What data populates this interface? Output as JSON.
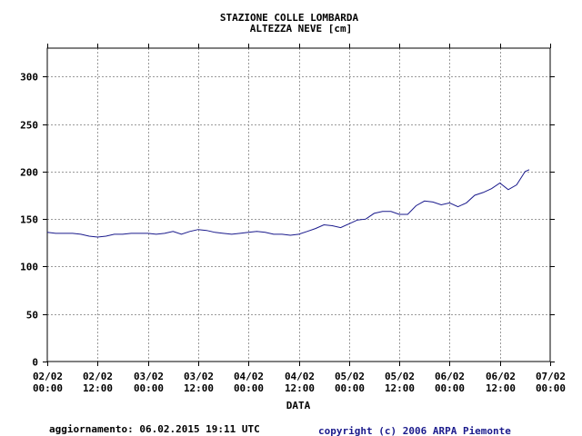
{
  "chart_data": {
    "type": "line",
    "title": "STAZIONE COLLE LOMBARDA",
    "subtitle": "ALTEZZA NEVE [cm]",
    "xlabel": "DATA",
    "ylabel": "",
    "ylim": [
      0,
      330
    ],
    "yticks": [
      0,
      50,
      100,
      150,
      200,
      250,
      300
    ],
    "xlim": [
      "02/02 00:00",
      "07/02 00:00"
    ],
    "xtick_dates": [
      "02/02",
      "02/02",
      "03/02",
      "03/02",
      "04/02",
      "04/02",
      "05/02",
      "05/02",
      "06/02",
      "06/02",
      "07/02"
    ],
    "xtick_times": [
      "00:00",
      "12:00",
      "00:00",
      "12:00",
      "00:00",
      "12:00",
      "00:00",
      "12:00",
      "00:00",
      "12:00",
      "00:00"
    ],
    "grid": true,
    "line_color": "#1a1a8c",
    "series": [
      {
        "name": "",
        "x": [
          "02/02 00:00",
          "02/02 02:00",
          "02/02 04:00",
          "02/02 06:00",
          "02/02 08:00",
          "02/02 10:00",
          "02/02 12:00",
          "02/02 14:00",
          "02/02 16:00",
          "02/02 18:00",
          "02/02 20:00",
          "02/02 22:00",
          "03/02 00:00",
          "03/02 02:00",
          "03/02 04:00",
          "03/02 06:00",
          "03/02 08:00",
          "03/02 10:00",
          "03/02 12:00",
          "03/02 14:00",
          "03/02 16:00",
          "03/02 18:00",
          "03/02 20:00",
          "03/02 22:00",
          "04/02 00:00",
          "04/02 02:00",
          "04/02 04:00",
          "04/02 06:00",
          "04/02 08:00",
          "04/02 10:00",
          "04/02 12:00",
          "04/02 14:00",
          "04/02 16:00",
          "04/02 18:00",
          "04/02 20:00",
          "04/02 22:00",
          "05/02 00:00",
          "05/02 02:00",
          "05/02 04:00",
          "05/02 06:00",
          "05/02 08:00",
          "05/02 10:00",
          "05/02 12:00",
          "05/02 14:00",
          "05/02 16:00",
          "05/02 18:00",
          "05/02 20:00",
          "05/02 22:00",
          "06/02 00:00",
          "06/02 02:00",
          "06/02 04:00",
          "06/02 06:00",
          "06/02 08:00",
          "06/02 10:00",
          "06/02 12:00",
          "06/02 14:00",
          "06/02 16:00",
          "06/02 18:00",
          "06/02 19:00"
        ],
        "values": [
          136,
          135,
          135,
          135,
          134,
          132,
          131,
          132,
          134,
          134,
          135,
          135,
          135,
          134,
          135,
          137,
          134,
          137,
          139,
          138,
          136,
          135,
          134,
          135,
          136,
          137,
          136,
          134,
          134,
          133,
          134,
          137,
          140,
          144,
          143,
          141,
          145,
          149,
          150,
          156,
          158,
          158,
          155,
          155,
          164,
          169,
          168,
          165,
          167,
          163,
          167,
          175,
          178,
          182,
          188,
          181,
          186,
          200,
          202
        ]
      }
    ]
  },
  "footer": {
    "update_text": "aggiornamento: 06.02.2015 19:11 UTC",
    "copyright_text": "copyright (c) 2006 ARPA Piemonte"
  }
}
